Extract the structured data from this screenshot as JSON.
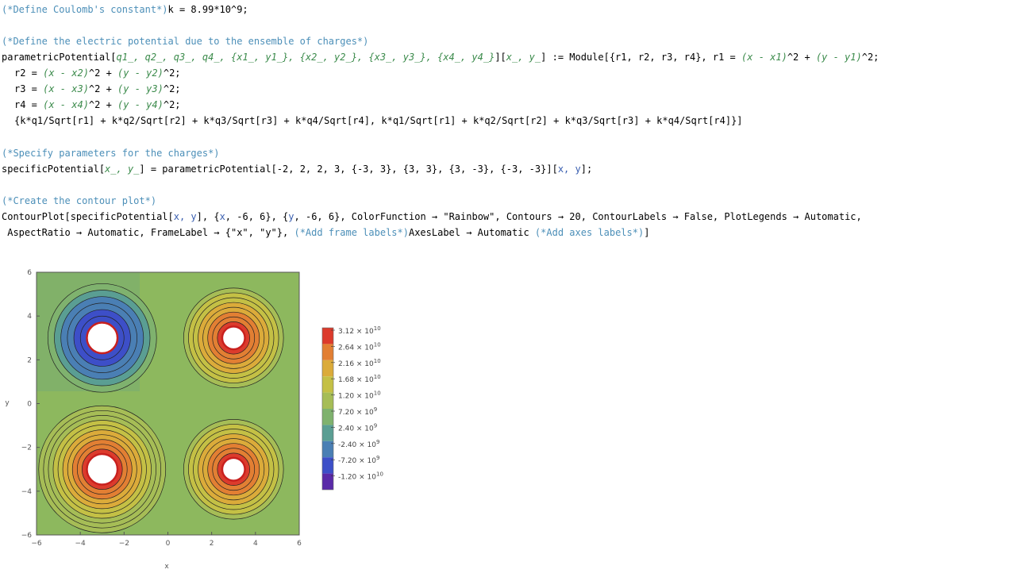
{
  "code": {
    "l1_comment": "(*Define Coulomb's constant*)",
    "l1_code": "k = 8.99*10^9;",
    "l2_comment": "(*Define the electric potential due to the ensemble of charges*)",
    "l3_a": "parametricPotential[",
    "l3_b": "q1_, q2_, q3_, q4_, {x1_, y1_}, {x2_, y2_}, {x3_, y3_}, {x4_, y4_}",
    "l3_c": "][",
    "l3_d": "x_, y_",
    "l3_e": "] := Module[{r1, r2, r3, r4}, r1 = ",
    "l3_f": "(x - x1)",
    "l3_g": "^2 + ",
    "l3_h": "(y - y1)",
    "l3_i": "^2;",
    "l4_a": "r2 = ",
    "l4_b": "(x - x2)",
    "l4_c": "^2 + ",
    "l4_d": "(y - y2)",
    "l4_e": "^2;",
    "l5_a": "r3 = ",
    "l5_b": "(x - x3)",
    "l5_c": "^2 + ",
    "l5_d": "(y - y3)",
    "l5_e": "^2;",
    "l6_a": "r4 = ",
    "l6_b": "(x - x4)",
    "l6_c": "^2 + ",
    "l6_d": "(y - y4)",
    "l6_e": "^2;",
    "l7": "{k*q1/Sqrt[r1] + k*q2/Sqrt[r2] + k*q3/Sqrt[r3] + k*q4/Sqrt[r4], k*q1/Sqrt[r1] + k*q2/Sqrt[r2] + k*q3/Sqrt[r3] + k*q4/Sqrt[r4]}]",
    "l8_comment": "(*Specify parameters for the charges*)",
    "l9_a": "specificPotential[",
    "l9_b": "x_, y_",
    "l9_c": "] = parametricPotential[-2, 2, 2, 3, {-3, 3}, {3, 3}, {3, -3}, {-3, -3}][",
    "l9_d": "x, y",
    "l9_e": "];",
    "l10_comment": "(*Create the contour plot*)",
    "l11_a": "ContourPlot[specificPotential[",
    "l11_b": "x, y",
    "l11_c": "], {",
    "l11_d": "x",
    "l11_e": ", -6, 6}, {",
    "l11_f": "y",
    "l11_g": ", -6, 6}, ColorFunction → \"Rainbow\", Contours → 20, ContourLabels → False, PlotLegends → Automatic,",
    "l12_a": " AspectRatio → Automatic, FrameLabel → {\"x\", \"y\"}, ",
    "l12_b": "(*Add frame labels*)",
    "l12_c": "AxesLabel → Automatic ",
    "l12_d": "(*Add axes labels*)",
    "l12_e": "]"
  },
  "chart_data": {
    "type": "heatmap",
    "xlabel": "x",
    "ylabel": "y",
    "xlim": [
      -6,
      6
    ],
    "ylim": [
      -6,
      6
    ],
    "xticks": [
      "-6",
      "-4",
      "-2",
      "0",
      "2",
      "4",
      "6"
    ],
    "yticks": [
      "6",
      "4",
      "2",
      "0",
      "-2",
      "-4",
      "-6"
    ],
    "charges": [
      {
        "q": -2,
        "x": -3,
        "y": 3
      },
      {
        "q": 2,
        "x": 3,
        "y": 3
      },
      {
        "q": 2,
        "x": 3,
        "y": -3
      },
      {
        "q": 3,
        "x": -3,
        "y": -3
      }
    ],
    "legend": [
      {
        "mantissa": "3.12 × 10",
        "exp": "10",
        "color": "#dc3b2c"
      },
      {
        "mantissa": "2.64 × 10",
        "exp": "10",
        "color": "#e27f33"
      },
      {
        "mantissa": "2.16 × 10",
        "exp": "10",
        "color": "#dbab3a"
      },
      {
        "mantissa": "1.68 × 10",
        "exp": "10",
        "color": "#c4c045"
      },
      {
        "mantissa": "1.20 × 10",
        "exp": "10",
        "color": "#a6bd56"
      },
      {
        "mantissa": "7.20 × 10",
        "exp": "9",
        "color": "#7fb26e"
      },
      {
        "mantissa": "2.40 × 10",
        "exp": "9",
        "color": "#5a9e93"
      },
      {
        "mantissa": "-2.40 × 10",
        "exp": "9",
        "color": "#4a7fb4"
      },
      {
        "mantissa": "-7.20 × 10",
        "exp": "9",
        "color": "#3d4fc8"
      },
      {
        "mantissa": "-1.20 × 10",
        "exp": "10",
        "color": "#5a2aa8"
      }
    ],
    "colors": {
      "bg_field": "#8db85e",
      "outer": "#7aab72",
      "hole_edge": "#c8201e"
    }
  }
}
